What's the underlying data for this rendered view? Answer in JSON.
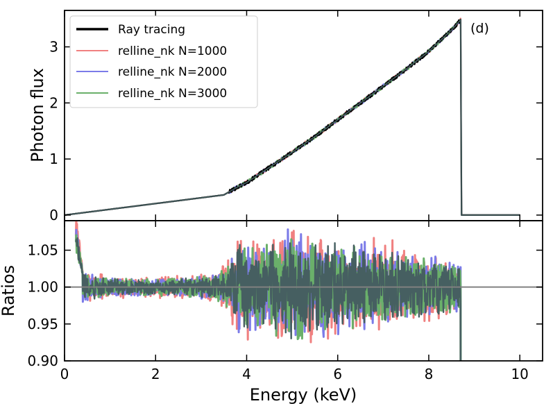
{
  "chart_data": [
    {
      "type": "line",
      "panel": "top",
      "panel_label": "(d)",
      "ylabel": "Photon flux",
      "xlim": [
        0,
        10.5
      ],
      "ylim": [
        -0.1,
        3.65
      ],
      "x_ticks": [
        0,
        2,
        4,
        6,
        8,
        10
      ],
      "y_ticks": [
        0,
        1,
        2,
        3
      ],
      "y_tick_labels": [
        "0",
        "1",
        "2",
        "3"
      ],
      "legend_position": "top-left",
      "series": [
        {
          "name": "Ray tracing",
          "color": "#000000",
          "x": [
            0.0,
            3.5,
            3.8,
            4.0,
            4.5,
            5.0,
            5.5,
            6.0,
            6.5,
            7.0,
            7.5,
            8.0,
            8.5,
            8.7,
            8.72,
            10.0
          ],
          "y": [
            0.0,
            0.36,
            0.5,
            0.58,
            0.85,
            1.12,
            1.4,
            1.7,
            2.0,
            2.3,
            2.6,
            2.92,
            3.3,
            3.48,
            0.0,
            0.0
          ]
        },
        {
          "name": "relline_nk N=1000",
          "color": "#f08080",
          "x": [
            0.0,
            3.5,
            3.8,
            4.0,
            4.5,
            5.0,
            5.5,
            6.0,
            6.5,
            7.0,
            7.5,
            8.0,
            8.5,
            8.7,
            8.72,
            10.0
          ],
          "y": [
            0.0,
            0.36,
            0.5,
            0.58,
            0.85,
            1.12,
            1.4,
            1.7,
            2.0,
            2.3,
            2.6,
            2.92,
            3.3,
            3.48,
            0.0,
            0.0
          ]
        },
        {
          "name": "relline_nk N=2000",
          "color": "#7b7be8",
          "x": [
            0.0,
            3.5,
            3.8,
            4.0,
            4.5,
            5.0,
            5.5,
            6.0,
            6.5,
            7.0,
            7.5,
            8.0,
            8.5,
            8.7,
            8.72,
            10.0
          ],
          "y": [
            0.0,
            0.36,
            0.5,
            0.58,
            0.85,
            1.12,
            1.4,
            1.7,
            2.0,
            2.3,
            2.6,
            2.92,
            3.3,
            3.48,
            0.0,
            0.0
          ]
        },
        {
          "name": "relline_nk N=3000",
          "color": "#6ab06a",
          "x": [
            0.0,
            3.5,
            3.8,
            4.0,
            4.5,
            5.0,
            5.5,
            6.0,
            6.5,
            7.0,
            7.5,
            8.0,
            8.5,
            8.7,
            8.72,
            10.0
          ],
          "y": [
            0.0,
            0.36,
            0.5,
            0.58,
            0.85,
            1.12,
            1.4,
            1.7,
            2.0,
            2.3,
            2.6,
            2.92,
            3.3,
            3.48,
            0.0,
            0.0
          ]
        }
      ]
    },
    {
      "type": "line",
      "panel": "bottom",
      "xlabel": "Energy (keV)",
      "ylabel": "Ratios",
      "xlim": [
        0,
        10.5
      ],
      "ylim": [
        0.9,
        1.09
      ],
      "x_ticks": [
        0,
        2,
        4,
        6,
        8,
        10
      ],
      "y_ticks": [
        0.9,
        0.95,
        1.0,
        1.05
      ],
      "y_tick_labels": [
        "0.90",
        "0.95",
        "1.00",
        "1.05"
      ],
      "reference_line": {
        "y": 1.0,
        "color": "#808080"
      },
      "x_range_plotted": [
        0.25,
        8.7
      ],
      "noise_envelope": {
        "x": [
          0.25,
          0.4,
          1.0,
          2.0,
          3.0,
          3.6,
          3.8,
          4.5,
          5.0,
          6.0,
          7.0,
          8.0,
          8.7
        ],
        "amplitude": [
          0.08,
          0.02,
          0.012,
          0.012,
          0.015,
          0.03,
          0.06,
          0.06,
          0.075,
          0.06,
          0.055,
          0.04,
          0.035
        ]
      },
      "series": [
        {
          "name": "relline_nk N=1000",
          "color": "#f08080"
        },
        {
          "name": "relline_nk N=2000",
          "color": "#7b7be8"
        },
        {
          "name": "relline_nk N=3000",
          "color": "#6ab06a"
        },
        {
          "name": "Ray tracing",
          "color": "#465f61"
        }
      ]
    }
  ]
}
